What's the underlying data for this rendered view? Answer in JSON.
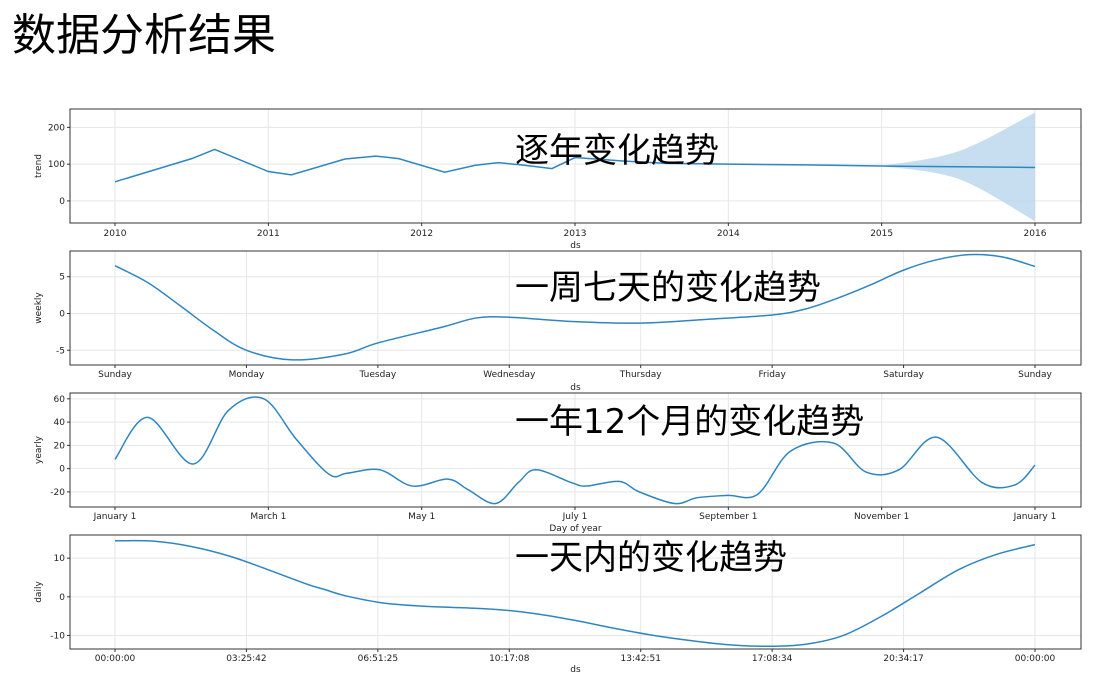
{
  "page": {
    "title": "数据分析结果"
  },
  "colors": {
    "line": "#2e86c1",
    "band": "#b9d6ee"
  },
  "chart_data": [
    {
      "type": "line",
      "overlay_title": "逐年变化趋势",
      "xlabel": "ds",
      "ylabel": "trend",
      "x_ticks": [
        "2010",
        "2011",
        "2012",
        "2013",
        "2014",
        "2015",
        "2016"
      ],
      "xlim": [
        2010,
        2016
      ],
      "ylim": [
        -60,
        250
      ],
      "y_ticks": [
        0,
        100,
        200
      ],
      "grid": true,
      "series": [
        {
          "x": [
            2010.0,
            2010.5,
            2010.65,
            2011.0,
            2011.15,
            2011.5,
            2011.7,
            2011.85,
            2012.15,
            2012.35,
            2012.5,
            2012.65,
            2012.85,
            2013.0,
            2013.3,
            2013.6,
            2014.0,
            2014.5,
            2015.0,
            2015.5,
            2016.0
          ],
          "y": [
            52,
            115,
            140,
            80,
            71,
            114,
            122,
            115,
            78,
            97,
            104,
            98,
            88,
            118,
            109,
            102,
            100,
            98,
            95,
            93,
            91
          ],
          "band_lower": [
            null,
            null,
            null,
            null,
            null,
            null,
            null,
            null,
            null,
            null,
            null,
            null,
            null,
            null,
            null,
            null,
            null,
            null,
            95,
            60,
            -55
          ],
          "band_upper": [
            null,
            null,
            null,
            null,
            null,
            null,
            null,
            null,
            null,
            null,
            null,
            null,
            null,
            null,
            null,
            null,
            null,
            null,
            95,
            135,
            240
          ]
        }
      ]
    },
    {
      "type": "line",
      "overlay_title": "一周七天的变化趋势",
      "xlabel": "ds",
      "ylabel": "weekly",
      "x_ticks": [
        "Sunday",
        "Monday",
        "Tuesday",
        "Wednesday",
        "Thursday",
        "Friday",
        "Saturday",
        "Sunday"
      ],
      "xlim": [
        0,
        7
      ],
      "ylim": [
        -7,
        8.5
      ],
      "y_ticks": [
        -5,
        0,
        5
      ],
      "grid": true,
      "series": [
        {
          "x": [
            0,
            0.25,
            0.5,
            0.75,
            1.0,
            1.35,
            1.75,
            2.0,
            2.5,
            2.75,
            3.0,
            3.5,
            4.0,
            4.5,
            5.0,
            5.25,
            5.5,
            5.75,
            6.0,
            6.25,
            6.5,
            6.75,
            7.0
          ],
          "y": [
            6.5,
            4.2,
            1.0,
            -2.3,
            -5.0,
            -6.3,
            -5.5,
            -4.0,
            -1.8,
            -0.6,
            -0.5,
            -1.1,
            -1.3,
            -0.8,
            -0.2,
            0.6,
            2.1,
            3.9,
            5.9,
            7.3,
            8.0,
            7.7,
            6.4
          ]
        }
      ]
    },
    {
      "type": "line",
      "overlay_title": "一年12个月的变化趋势",
      "xlabel": "Day of year",
      "ylabel": "yearly",
      "x_ticks": [
        "January 1",
        "March 1",
        "May 1",
        "July 1",
        "September 1",
        "November 1",
        "January 1"
      ],
      "xlim": [
        0,
        365
      ],
      "ylim": [
        -33,
        65
      ],
      "y_ticks": [
        -20,
        0,
        20,
        40,
        60
      ],
      "grid": true,
      "series": [
        {
          "x": [
            0,
            13,
            31,
            45,
            59,
            72,
            85,
            92,
            105,
            118,
            132,
            140,
            151,
            160,
            167,
            181,
            187,
            200,
            208,
            222,
            231,
            243,
            255,
            268,
            285,
            298,
            311,
            326,
            344,
            357,
            365
          ],
          "y": [
            8,
            44,
            4,
            50,
            60,
            25,
            -5,
            -4,
            -1,
            -15,
            -9,
            -18,
            -30,
            -12,
            -1,
            -12,
            -15,
            -11,
            -20,
            -30,
            -25,
            -23,
            -22,
            15,
            22,
            -3,
            -1,
            27,
            -12,
            -14,
            3
          ]
        }
      ]
    },
    {
      "type": "line",
      "overlay_title": "一天内的变化趋势",
      "xlabel": "ds",
      "ylabel": "daily",
      "x_ticks": [
        "00:00:00",
        "03:25:42",
        "06:51:25",
        "10:17:08",
        "13:42:51",
        "17:08:34",
        "20:34:17",
        "00:00:00"
      ],
      "xlim": [
        0,
        24
      ],
      "ylim": [
        -13.5,
        16
      ],
      "y_ticks": [
        -10,
        0,
        10
      ],
      "grid": true,
      "series": [
        {
          "x": [
            0,
            1,
            2,
            3,
            4,
            5,
            5.5,
            6,
            7,
            8,
            9,
            10,
            11,
            12,
            13,
            14,
            15,
            16,
            17,
            18,
            19,
            20,
            21,
            22,
            23,
            24
          ],
          "y": [
            14.5,
            14.4,
            13.0,
            10.5,
            7.0,
            3.3,
            1.8,
            0.3,
            -1.6,
            -2.4,
            -2.8,
            -3.3,
            -4.4,
            -6.1,
            -8.1,
            -9.9,
            -11.3,
            -12.4,
            -12.8,
            -12.3,
            -10.0,
            -5.0,
            1.0,
            7.0,
            11.0,
            13.5
          ]
        }
      ]
    }
  ]
}
